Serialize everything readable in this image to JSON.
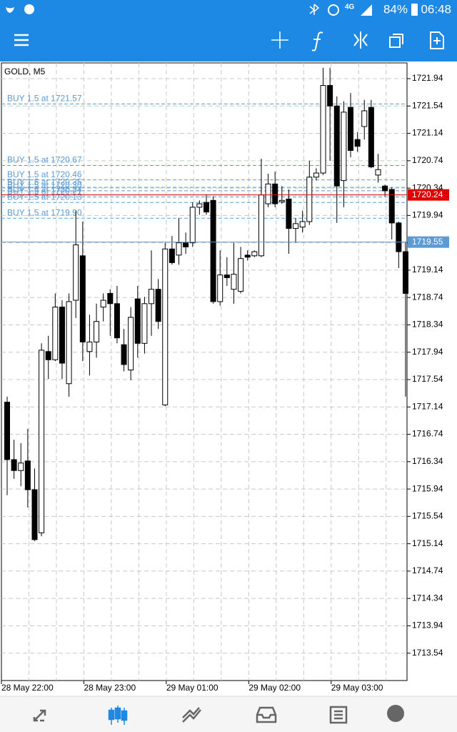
{
  "status_bar": {
    "network": "4G",
    "battery": "84%",
    "time": "06:48"
  },
  "chart_data": {
    "type": "candlestick",
    "title": "GOLD, M5",
    "categories": [
      "28 May 22:00",
      null,
      null,
      null,
      null,
      null,
      null,
      null,
      null,
      null,
      null,
      null,
      "28 May 23:00",
      null,
      null,
      null,
      null,
      null,
      null,
      null,
      null,
      null,
      null,
      null,
      "29 May 01:00",
      null,
      null,
      null,
      null,
      null,
      null,
      null,
      null,
      null,
      null,
      null,
      "29 May 02:00",
      null,
      null,
      null,
      null,
      null,
      null,
      null,
      null,
      null,
      null,
      null,
      "29 May 03:00",
      null,
      null,
      null,
      null,
      null,
      null,
      null,
      null,
      null,
      null
    ],
    "open": [
      1717.21,
      1716.37,
      1716.21,
      1716.35,
      1715.93,
      1715.3,
      1717.95,
      1717.83,
      1718.6,
      1717.48,
      1718.7,
      1719.35,
      1717.95,
      1718.09,
      1718.6,
      1718.8,
      1718.65,
      1718.05,
      1717.68,
      1718.72,
      1718.07,
      1718.65,
      1718.86,
      1717.17,
      1719.45,
      1719.36,
      1719.54,
      1719.54,
      1720.06,
      1720.13,
      1720.16,
      1718.68,
      1719.07,
      1718.86,
      1718.83,
      1719.36,
      1719.35,
      1719.35,
      1720.11,
      1720.4,
      1720.14,
      1720.18,
      1719.75,
      1719.77,
      1719.85,
      1720.5,
      1720.56,
      1721.84,
      1721.54,
      1720.45,
      1721.52,
      1721.05,
      1721.24,
      1721.52,
      1720.53,
      1720.37,
      1720.32,
      1719.83,
      1719.41
    ],
    "high": [
      1717.29,
      1716.66,
      1716.61,
      1716.82,
      1716.24,
      1718.07,
      1718.18,
      1718.8,
      1718.7,
      1718.8,
      1720.01,
      1719.85,
      1718.49,
      1718.65,
      1718.8,
      1718.86,
      1718.91,
      1718.28,
      1718.6,
      1718.91,
      1718.75,
      1719.43,
      1719.01,
      1719.54,
      1719.64,
      1719.9,
      1719.69,
      1720.13,
      1720.16,
      1720.25,
      1720.22,
      1719.43,
      1719.33,
      1719.54,
      1719.48,
      1719.43,
      1719.43,
      1720.77,
      1720.55,
      1720.58,
      1720.37,
      1720.32,
      1719.9,
      1720.01,
      1720.74,
      1720.63,
      1722.1,
      1722.1,
      1721.68,
      1721.61,
      1721.73,
      1721.16,
      1721.63,
      1721.63,
      1720.84,
      1720.39,
      1720.35,
      1719.85,
      1719.56
    ],
    "low": [
      1715.85,
      1716.09,
      1715.98,
      1715.67,
      1715.18,
      1715.25,
      1717.55,
      1717.81,
      1717.55,
      1717.29,
      1718.44,
      1717.81,
      1717.6,
      1717.86,
      1718.39,
      1718.18,
      1718.07,
      1717.66,
      1717.53,
      1717.86,
      1717.92,
      1718.18,
      1718.28,
      1717.15,
      1719.22,
      1719.22,
      1719.38,
      1719.48,
      1719.95,
      1719.95,
      1718.65,
      1718.62,
      1718.91,
      1718.65,
      1718.8,
      1719.28,
      1719.33,
      1719.33,
      1720.06,
      1720.06,
      1720.11,
      1719.38,
      1719.54,
      1719.69,
      1719.8,
      1720.45,
      1720.53,
      1720.74,
      1719.83,
      1720.06,
      1720.79,
      1720.87,
      1721.05,
      1720.63,
      1720.42,
      1720.22,
      1719.59,
      1719.17,
      1717.29
    ],
    "close": [
      1716.37,
      1716.21,
      1716.32,
      1715.93,
      1715.2,
      1717.97,
      1717.83,
      1718.6,
      1717.78,
      1718.68,
      1719.51,
      1718.09,
      1718.09,
      1718.39,
      1718.7,
      1718.65,
      1718.15,
      1717.76,
      1718.45,
      1718.07,
      1718.65,
      1718.86,
      1718.39,
      1719.45,
      1719.25,
      1719.54,
      1719.48,
      1720.06,
      1720.11,
      1719.99,
      1718.68,
      1719.07,
      1719.03,
      1719.08,
      1719.31,
      1719.33,
      1719.41,
      1720.24,
      1720.4,
      1720.11,
      1720.16,
      1719.75,
      1719.82,
      1719.85,
      1720.5,
      1720.56,
      1721.84,
      1721.54,
      1720.37,
      1721.45,
      1720.89,
      1720.95,
      1721.47,
      1720.65,
      1720.61,
      1720.3,
      1719.83,
      1719.41,
      1718.8
    ],
    "up_color": "#ffffff",
    "down_color": "#000000",
    "ylim": [
      1713.14,
      1722.17
    ],
    "yticks": [
      1713.54,
      1713.94,
      1714.34,
      1714.74,
      1715.14,
      1715.54,
      1715.94,
      1716.34,
      1716.74,
      1717.14,
      1717.54,
      1717.94,
      1718.34,
      1718.74,
      1719.14,
      1719.54,
      1719.94,
      1720.34,
      1720.74,
      1721.14,
      1721.54,
      1721.94
    ],
    "grid": true,
    "orders": [
      {
        "label": "BUY 1.5 at 1721.57",
        "price": 1721.57
      },
      {
        "label": "BUY 1.5 at 1720.67",
        "price": 1720.67
      },
      {
        "label": "BUY 1.5 at 1720.46",
        "price": 1720.46
      },
      {
        "label": "BUY 1.5 at 1720.35",
        "price": 1720.35
      },
      {
        "label": "BUY 1.5 at 1720.30",
        "price": 1720.3
      },
      {
        "label": "BUY 1.5 at 1720.24",
        "price": 1720.24
      },
      {
        "label": "BUY 1.5 at 1720.21",
        "price": 1720.21
      },
      {
        "label": "BUY 1.5 at 1720.13",
        "price": 1720.13
      },
      {
        "label": "BUY 1.5 at 1719.90",
        "price": 1719.9
      }
    ],
    "order_color": "#5b9bd5",
    "price_lines": [
      {
        "value": 1720.24,
        "color": "#e00000"
      },
      {
        "value": 1719.55,
        "color": "#5b9bd5"
      }
    ]
  }
}
